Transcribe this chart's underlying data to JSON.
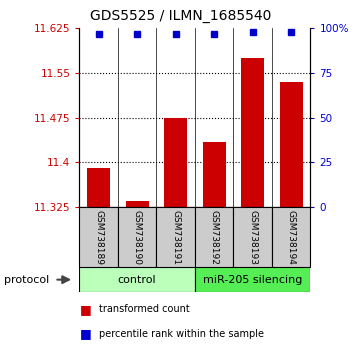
{
  "title": "GDS5525 / ILMN_1685540",
  "samples": [
    "GSM738189",
    "GSM738190",
    "GSM738191",
    "GSM738192",
    "GSM738193",
    "GSM738194"
  ],
  "bar_values": [
    11.39,
    11.335,
    11.475,
    11.435,
    11.575,
    11.535
  ],
  "percentile_values": [
    97,
    97,
    97,
    97,
    98,
    98
  ],
  "ylim": [
    11.325,
    11.625
  ],
  "yticks": [
    11.325,
    11.4,
    11.475,
    11.55,
    11.625
  ],
  "ytick_labels": [
    "11.325",
    "11.4",
    "11.475",
    "11.55",
    "11.625"
  ],
  "right_yticks": [
    0,
    25,
    50,
    75,
    100
  ],
  "right_ytick_labels": [
    "0",
    "25",
    "50",
    "75",
    "100%"
  ],
  "grid_lines": [
    11.4,
    11.475,
    11.55
  ],
  "bar_color": "#cc0000",
  "scatter_color": "#0000cc",
  "bar_width": 0.6,
  "ctrl_color": "#bbffbb",
  "mir_color": "#55ee55",
  "sample_box_color": "#cccccc",
  "legend_bar_label": "transformed count",
  "legend_scatter_label": "percentile rank within the sample",
  "protocol_label": "protocol"
}
